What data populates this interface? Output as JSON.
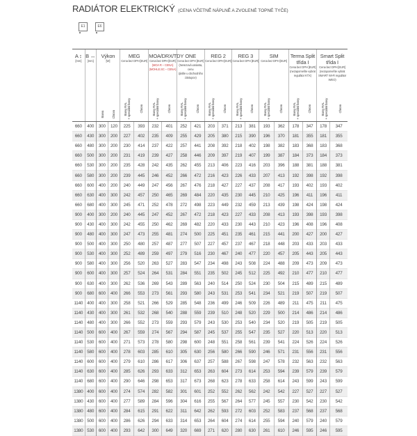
{
  "title": {
    "main": "RADIÁTOR ELEKTRICKÝ",
    "sub": "(CENA VČETNĚ NÁPLNĚ A ZVOLENÉ TOPNÉ TYČE)"
  },
  "icons": [
    {
      "label": "E1"
    },
    {
      "label": "E6"
    }
  ],
  "header": {
    "a": {
      "name": "A ↕",
      "unit": "[mm]"
    },
    "b": {
      "name": "B ↔",
      "unit": "[mm]"
    },
    "power": {
      "name": "Výkon",
      "unit": "[W]",
      "subs": [
        "Barva",
        "Chrom"
      ]
    },
    "groups": [
      {
        "name": "MEG",
        "notes": [
          "Cena bez DPH [EUR]"
        ],
        "subs": [
          "Barvy RAL\n+ speciální barvy",
          "Chrom"
        ]
      },
      {
        "name": "MOA/DRX/TDY",
        "notes": [
          "Cena bez DPH [EUR]",
          "(MOA R – CENA)",
          "(MOHLE.SC – CENA)"
        ],
        "subs": [
          "Barvy RAL\n+ speciální barvy",
          "Chrom"
        ]
      },
      {
        "name": "ONE",
        "notes": [
          "Cena bez DPH [EUR]",
          "(Nerezová varianta, cenu",
          "zjistíte u obchodního zástupce)"
        ],
        "subs": [
          "Barvy RAL\n+ speciální barvy",
          "Chrom"
        ]
      },
      {
        "name": "REG 2",
        "notes": [
          "Cena bez DPH [EUR]"
        ],
        "subs": [
          "Barvy RAL\n+ speciální barvy",
          "Chrom"
        ]
      },
      {
        "name": "REG 3",
        "notes": [
          "Cena bez DPH [EUR]"
        ],
        "subs": [
          "Barvy RAL\n+ speciální barvy",
          "Chrom"
        ]
      },
      {
        "name": "SIM",
        "notes": [
          "Cena bez DPH [EUR]"
        ],
        "subs": [
          "Barvy RAL\n+ speciální barvy",
          "Chrom"
        ]
      },
      {
        "name": "Terma Split třída I",
        "notes": [
          "Cena bez DPH [EUR]",
          "(nezapomeňte vybrat",
          "regulátor KTX)"
        ],
        "subs": [
          "Barvy RAL\n+ speciální barvy",
          "Chrom"
        ]
      },
      {
        "name": "Smart Split třída I",
        "notes": [
          "Cena bez DPH [EUR]",
          "(nezapomeňte vybrat",
          "SMART Wi-Fi regulátor",
          "WEO)"
        ],
        "subs": [
          "Barvy RAL\n+ speciální barvy",
          "Chrom"
        ]
      }
    ]
  },
  "rows": [
    [
      660,
      400,
      300,
      120,
      225,
      393,
      232,
      401,
      252,
      421,
      203,
      371,
      213,
      381,
      193,
      362,
      178,
      347,
      178,
      347
    ],
    [
      660,
      430,
      300,
      200,
      227,
      402,
      235,
      409,
      255,
      429,
      205,
      380,
      215,
      390,
      196,
      370,
      181,
      355,
      181,
      355
    ],
    [
      660,
      480,
      300,
      200,
      230,
      414,
      237,
      422,
      257,
      441,
      208,
      392,
      218,
      402,
      198,
      382,
      183,
      368,
      183,
      368
    ],
    [
      660,
      500,
      300,
      200,
      231,
      419,
      239,
      427,
      258,
      446,
      209,
      397,
      219,
      407,
      199,
      387,
      184,
      373,
      184,
      373
    ],
    [
      660,
      530,
      300,
      200,
      235,
      428,
      242,
      435,
      262,
      455,
      213,
      406,
      223,
      416,
      203,
      396,
      188,
      381,
      188,
      381
    ],
    [
      660,
      580,
      300,
      200,
      239,
      445,
      246,
      452,
      266,
      472,
      216,
      423,
      226,
      433,
      207,
      413,
      192,
      398,
      192,
      398
    ],
    [
      660,
      600,
      400,
      200,
      240,
      449,
      247,
      456,
      267,
      476,
      218,
      427,
      227,
      437,
      208,
      417,
      193,
      402,
      193,
      402
    ],
    [
      660,
      630,
      400,
      300,
      242,
      457,
      250,
      465,
      269,
      484,
      220,
      435,
      230,
      445,
      210,
      425,
      196,
      411,
      196,
      411
    ],
    [
      660,
      680,
      400,
      300,
      245,
      471,
      252,
      478,
      272,
      498,
      223,
      449,
      232,
      459,
      213,
      439,
      198,
      424,
      198,
      424
    ],
    [
      900,
      400,
      300,
      200,
      240,
      445,
      247,
      452,
      267,
      472,
      218,
      423,
      227,
      433,
      208,
      413,
      193,
      398,
      193,
      398
    ],
    [
      900,
      430,
      400,
      300,
      242,
      455,
      250,
      462,
      269,
      482,
      220,
      433,
      230,
      443,
      210,
      423,
      196,
      408,
      196,
      408
    ],
    [
      900,
      480,
      400,
      300,
      247,
      473,
      255,
      481,
      274,
      500,
      225,
      451,
      235,
      461,
      215,
      441,
      200,
      427,
      200,
      427
    ],
    [
      900,
      500,
      400,
      300,
      250,
      480,
      257,
      487,
      277,
      507,
      227,
      457,
      237,
      467,
      218,
      448,
      203,
      433,
      203,
      433
    ],
    [
      900,
      530,
      400,
      300,
      252,
      489,
      259,
      497,
      279,
      516,
      230,
      467,
      240,
      477,
      220,
      457,
      205,
      443,
      205,
      443
    ],
    [
      900,
      580,
      400,
      300,
      256,
      520,
      263,
      527,
      283,
      547,
      234,
      498,
      243,
      508,
      224,
      488,
      209,
      473,
      209,
      473
    ],
    [
      900,
      600,
      400,
      300,
      257,
      524,
      264,
      531,
      284,
      551,
      235,
      502,
      245,
      512,
      225,
      492,
      210,
      477,
      210,
      477
    ],
    [
      900,
      630,
      400,
      300,
      262,
      536,
      269,
      543,
      289,
      563,
      240,
      514,
      250,
      524,
      230,
      504,
      215,
      489,
      215,
      489
    ],
    [
      900,
      680,
      600,
      400,
      266,
      553,
      273,
      561,
      293,
      580,
      243,
      531,
      253,
      541,
      234,
      521,
      219,
      507,
      219,
      507
    ],
    [
      1140,
      400,
      400,
      300,
      258,
      521,
      266,
      529,
      285,
      548,
      236,
      499,
      246,
      509,
      226,
      489,
      211,
      475,
      211,
      475
    ],
    [
      1140,
      430,
      400,
      300,
      261,
      532,
      268,
      540,
      288,
      559,
      239,
      510,
      248,
      520,
      229,
      500,
      214,
      486,
      214,
      486
    ],
    [
      1140,
      480,
      400,
      300,
      266,
      552,
      273,
      559,
      293,
      579,
      243,
      530,
      253,
      540,
      234,
      520,
      219,
      505,
      219,
      505
    ],
    [
      1140,
      500,
      600,
      400,
      267,
      559,
      274,
      567,
      294,
      587,
      245,
      537,
      255,
      547,
      235,
      527,
      220,
      513,
      220,
      513
    ],
    [
      1140,
      530,
      600,
      400,
      271,
      573,
      278,
      580,
      298,
      600,
      248,
      551,
      258,
      561,
      239,
      541,
      224,
      526,
      224,
      526
    ],
    [
      1140,
      580,
      600,
      400,
      278,
      603,
      285,
      610,
      305,
      630,
      256,
      580,
      266,
      590,
      246,
      571,
      231,
      556,
      231,
      556
    ],
    [
      1140,
      600,
      600,
      400,
      279,
      610,
      286,
      617,
      306,
      637,
      257,
      588,
      267,
      598,
      247,
      578,
      232,
      563,
      232,
      563
    ],
    [
      1140,
      630,
      600,
      400,
      285,
      626,
      293,
      633,
      312,
      653,
      263,
      604,
      273,
      614,
      253,
      594,
      239,
      579,
      239,
      579
    ],
    [
      1140,
      680,
      600,
      400,
      290,
      646,
      298,
      653,
      317,
      673,
      268,
      623,
      278,
      633,
      258,
      614,
      243,
      599,
      243,
      599
    ],
    [
      1380,
      400,
      600,
      400,
      274,
      574,
      282,
      582,
      301,
      601,
      252,
      552,
      262,
      562,
      242,
      542,
      227,
      527,
      227,
      527
    ],
    [
      1380,
      430,
      600,
      400,
      277,
      589,
      284,
      596,
      304,
      616,
      255,
      567,
      264,
      577,
      245,
      557,
      230,
      542,
      230,
      542
    ],
    [
      1380,
      480,
      600,
      400,
      284,
      615,
      291,
      622,
      311,
      642,
      262,
      593,
      272,
      603,
      252,
      583,
      237,
      568,
      237,
      568
    ],
    [
      1380,
      500,
      600,
      400,
      286,
      626,
      294,
      633,
      314,
      653,
      264,
      604,
      274,
      614,
      255,
      594,
      240,
      579,
      240,
      579
    ],
    [
      1380,
      530,
      600,
      400,
      293,
      642,
      300,
      649,
      320,
      669,
      271,
      620,
      280,
      630,
      261,
      610,
      246,
      595,
      246,
      595
    ]
  ],
  "colors": {
    "row_alt": "#efefef",
    "note_red": "#cc4444"
  }
}
